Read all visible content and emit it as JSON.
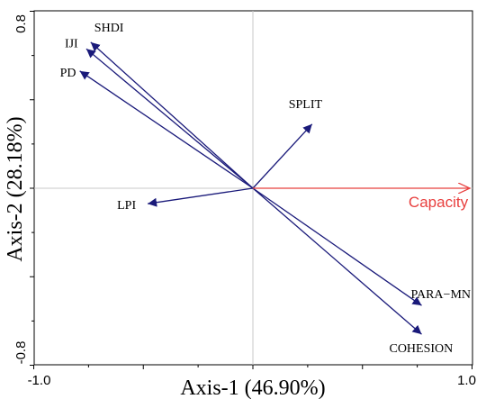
{
  "chart_data": {
    "type": "biplot",
    "xlabel": "Axis-1 (46.90%)",
    "ylabel": "Axis-2 (28.18%)",
    "xlim": [
      -1.0,
      1.0
    ],
    "ylim": [
      -0.8,
      0.8
    ],
    "x_ticks": [
      "-1.0",
      "1.0"
    ],
    "y_ticks": [
      "0.8",
      "-0.8"
    ],
    "grid": false,
    "reference_lines": {
      "x": 0,
      "y": 0
    },
    "explanatory_vectors": [
      {
        "name": "SHDI",
        "x": -0.74,
        "y": 0.66
      },
      {
        "name": "IJI",
        "x": -0.76,
        "y": 0.63
      },
      {
        "name": "PD",
        "x": -0.79,
        "y": 0.53
      },
      {
        "name": "SPLIT",
        "x": 0.27,
        "y": 0.29
      },
      {
        "name": "LPI",
        "x": -0.48,
        "y": -0.07
      },
      {
        "name": "PARA−MN",
        "x": 0.77,
        "y": -0.53
      },
      {
        "name": "COHESION",
        "x": 0.77,
        "y": -0.66
      }
    ],
    "response_vectors": [
      {
        "name": "Capacity",
        "x": 0.99,
        "y": 0.0
      }
    ],
    "colors": {
      "explanatory": "#1a1a7a",
      "response": "#e8403f",
      "reference_line": "#c8c8c8",
      "frame": "#000000"
    }
  }
}
